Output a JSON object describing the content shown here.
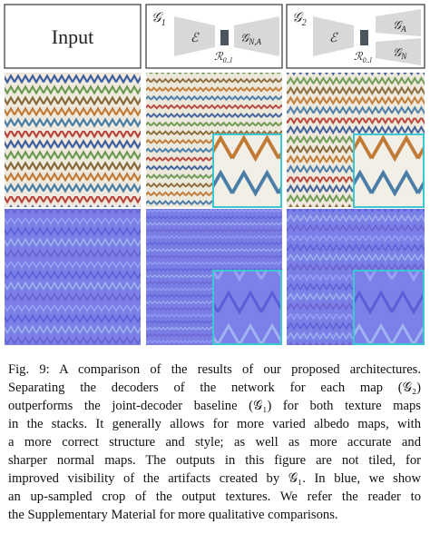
{
  "figure": {
    "panels": [
      {
        "label": "Input"
      },
      {
        "tag": {
          "main": "𝒢",
          "sub": "1"
        },
        "encoder": "ℰ",
        "latent": {
          "main": "ℛ",
          "sub": "0..l"
        },
        "decoders": [
          {
            "main": "𝒢",
            "sub": "N,A"
          }
        ]
      },
      {
        "tag": {
          "main": "𝒢",
          "sub": "2"
        },
        "encoder": "ℰ",
        "latent": {
          "main": "ℛ",
          "sub": "0..l"
        },
        "decoders": [
          {
            "main": "𝒢",
            "sub": "A"
          },
          {
            "main": "𝒢",
            "sub": "N"
          }
        ]
      }
    ]
  },
  "caption": {
    "lines": [
      "Fig. 9: A comparison of the results of our proposed architectures.",
      "Separating the decoders of the network for each map (𝒢₂)",
      "outperforms the joint-decoder baseline (𝒢₁) for both texture maps",
      "in the stacks. It generally allows for more varied albedo maps, with",
      "a more correct structure and style; as well as more accurate and",
      "sharper normal maps. The outputs in this figure are not tiled, for",
      "improved visibility of the artifacts created by 𝒢₁. In blue, we show",
      "an up-sampled crop of the output textures. We refer the reader to",
      "the Supplementary Material for more qualitative comparisons."
    ]
  }
}
